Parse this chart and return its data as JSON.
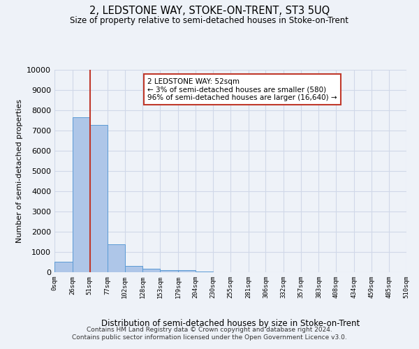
{
  "title": "2, LEDSTONE WAY, STOKE-ON-TRENT, ST3 5UQ",
  "subtitle": "Size of property relative to semi-detached houses in Stoke-on-Trent",
  "xlabel": "Distribution of semi-detached houses by size in Stoke-on-Trent",
  "ylabel": "Number of semi-detached properties",
  "footer_line1": "Contains HM Land Registry data © Crown copyright and database right 2024.",
  "footer_line2": "Contains public sector information licensed under the Open Government Licence v3.0.",
  "annotation_title": "2 LEDSTONE WAY: 52sqm",
  "annotation_line1": "← 3% of semi-detached houses are smaller (580)",
  "annotation_line2": "96% of semi-detached houses are larger (16,640) →",
  "property_size": 52,
  "bin_edges": [
    0,
    26,
    51,
    77,
    102,
    128,
    153,
    179,
    204,
    230,
    255,
    281,
    306,
    332,
    357,
    383,
    408,
    434,
    459,
    485,
    510
  ],
  "bar_values": [
    530,
    7650,
    7280,
    1370,
    320,
    175,
    115,
    90,
    50,
    0,
    0,
    0,
    0,
    0,
    0,
    0,
    0,
    0,
    0,
    0
  ],
  "bar_color": "#aec6e8",
  "bar_edge_color": "#5b9bd5",
  "vline_color": "#c0392b",
  "vline_x": 52,
  "ylim": [
    0,
    10000
  ],
  "yticks": [
    0,
    1000,
    2000,
    3000,
    4000,
    5000,
    6000,
    7000,
    8000,
    9000,
    10000
  ],
  "annotation_box_color": "white",
  "annotation_box_edge": "#c0392b",
  "grid_color": "#d0d8e8",
  "background_color": "#eef2f8"
}
